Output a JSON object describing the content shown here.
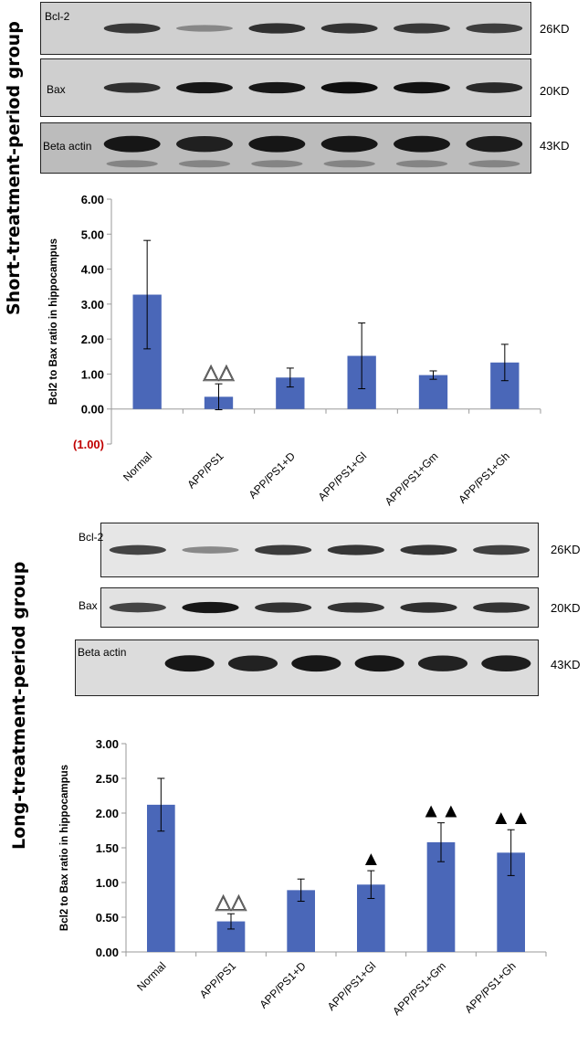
{
  "panels": [
    {
      "group_title": "Short-treatment-period group",
      "blots": [
        {
          "label": "Bcl-2",
          "kd": "26KD",
          "bands": [
            0.75,
            0.18,
            0.8,
            0.78,
            0.75,
            0.72
          ]
        },
        {
          "label": "Bax",
          "kd": "20KD",
          "bands": [
            0.8,
            0.95,
            0.95,
            1.0,
            0.98,
            0.85
          ]
        },
        {
          "label": "Beta actin",
          "kd": "43KD",
          "bands": [
            0.95,
            0.9,
            0.95,
            0.95,
            0.95,
            0.92
          ]
        }
      ]
    },
    {
      "group_title": "Long-treatment-period group",
      "blots": [
        {
          "label": "Bcl-2",
          "kd": "26KD",
          "bands": [
            0.7,
            0.25,
            0.75,
            0.78,
            0.78,
            0.72
          ]
        },
        {
          "label": "Bax",
          "kd": "20KD",
          "bands": [
            0.7,
            0.95,
            0.8,
            0.8,
            0.82,
            0.8
          ]
        },
        {
          "label": "Beta actin",
          "kd": "43KD",
          "bands": [
            0.95,
            0.9,
            0.95,
            0.95,
            0.9,
            0.92
          ]
        }
      ]
    }
  ],
  "chart_data": [
    {
      "type": "bar",
      "categories": [
        "Normal",
        "APP/PS1",
        "APP/PS1+D",
        "APP/PS1+Gl",
        "APP/PS1+Gm",
        "APP/PS1+Gh"
      ],
      "values": [
        3.27,
        0.35,
        0.9,
        1.52,
        0.97,
        1.33
      ],
      "errors": [
        1.55,
        0.37,
        0.27,
        0.94,
        0.12,
        0.52
      ],
      "markers": [
        "",
        "△△",
        "",
        "",
        "",
        ""
      ],
      "ylabel": "Bcl2 to Bax ratio in hippocampus",
      "ylim": [
        -1,
        6
      ],
      "ytick_labels": [
        "6.00",
        "5.00",
        "4.00",
        "3.00",
        "2.00",
        "1.00",
        "0.00",
        "(1.00)"
      ],
      "ytick_values": [
        6,
        5,
        4,
        3,
        2,
        1,
        0,
        -1
      ],
      "negative_tick_color": "#c00000",
      "bar_color": "#4a67b8"
    },
    {
      "type": "bar",
      "categories": [
        "Normal",
        "APP/PS1",
        "APP/PS1+D",
        "APP/PS1+Gl",
        "APP/PS1+Gm",
        "APP/PS1+Gh"
      ],
      "values": [
        2.12,
        0.44,
        0.89,
        0.97,
        1.58,
        1.43
      ],
      "errors": [
        0.38,
        0.11,
        0.16,
        0.2,
        0.28,
        0.33
      ],
      "markers": [
        "",
        "△△",
        "",
        "▲",
        "▲▲",
        "▲▲"
      ],
      "ylabel": "Bcl2 to Bax ratio in hippocampus",
      "ylim": [
        0,
        3
      ],
      "ytick_labels": [
        "3.00",
        "2.50",
        "2.00",
        "1.50",
        "1.00",
        "0.50",
        "0.00"
      ],
      "ytick_values": [
        3,
        2.5,
        2,
        1.5,
        1,
        0.5,
        0
      ],
      "bar_color": "#4a67b8"
    }
  ]
}
